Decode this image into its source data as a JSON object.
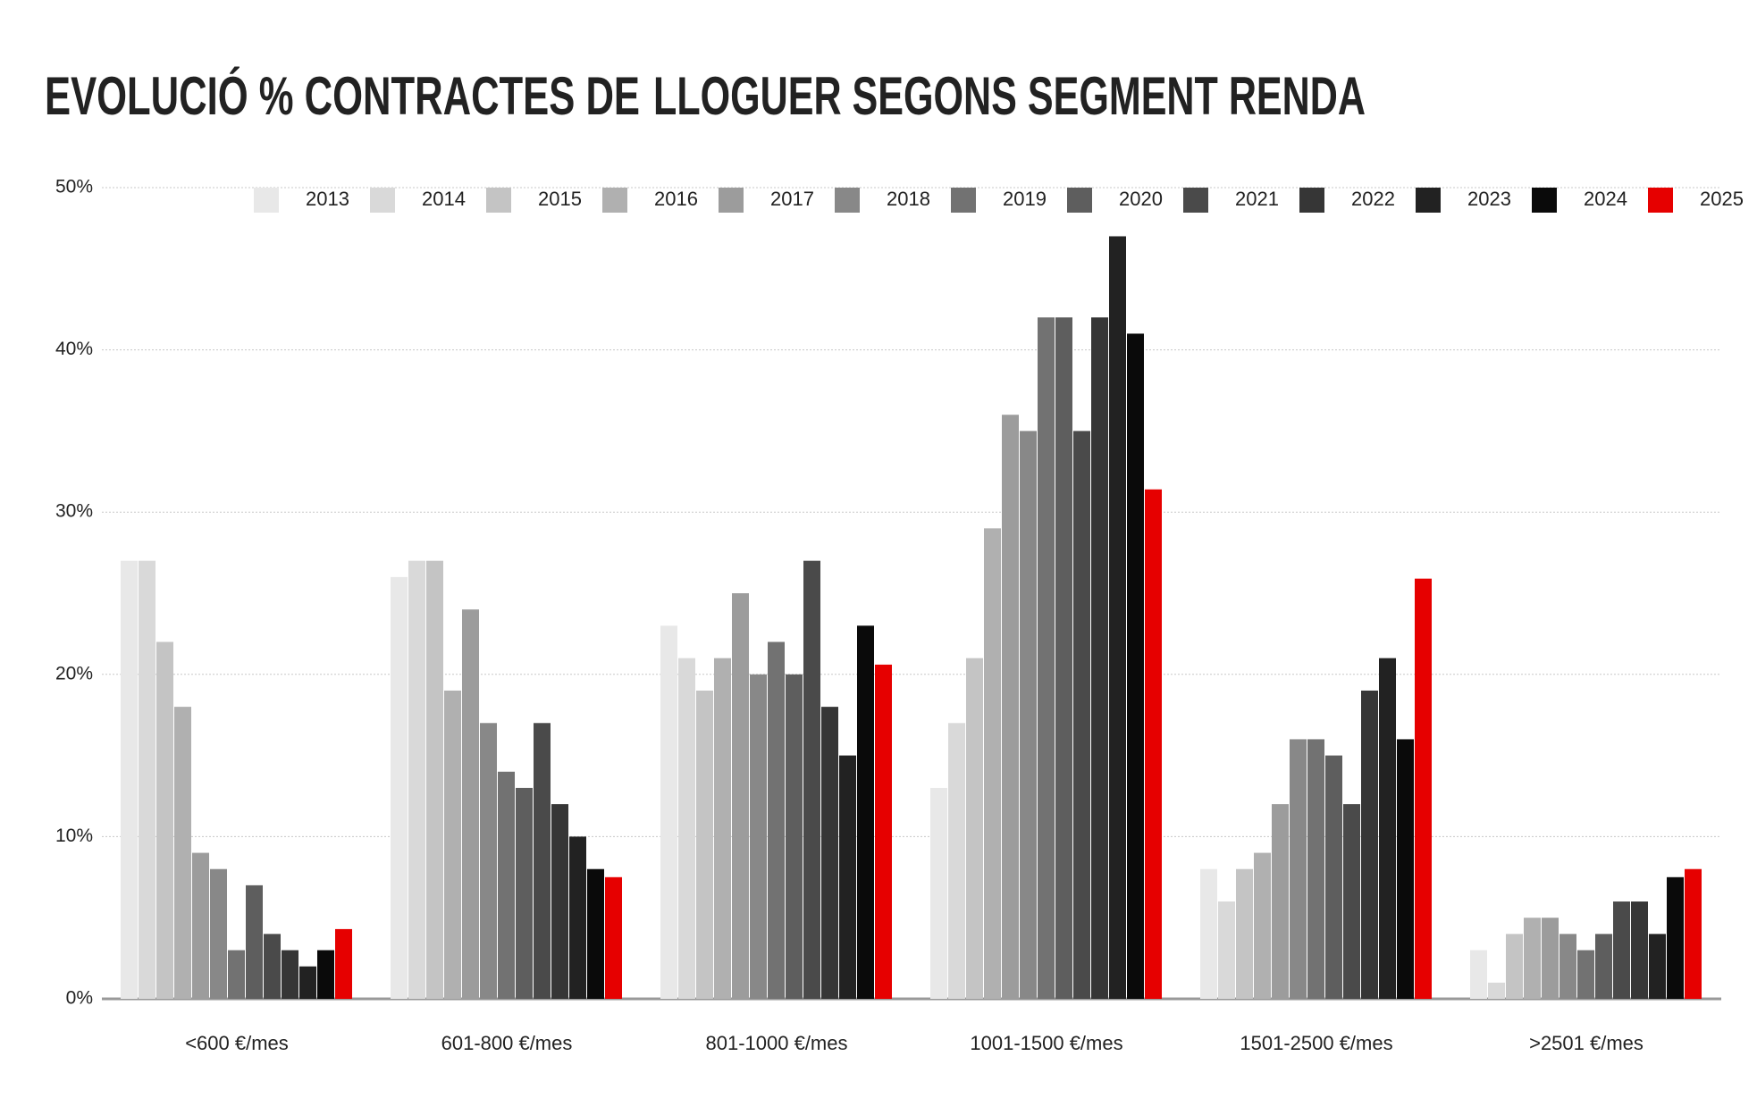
{
  "chart_data": {
    "type": "bar",
    "title": [
      "EVOLUCIÓ % CONTRACTES DE",
      "LLOGUER SEGONS SEGMENT RENDA"
    ],
    "title_colors": [
      "#000000",
      "#e3131b"
    ],
    "categories": [
      "<600 €/mes",
      "601-800 €/mes",
      "801-1000 €/mes",
      "1001-1500 €/mes",
      "1501-2500 €/mes",
      ">2501 €/mes"
    ],
    "series": [
      {
        "name": "2013",
        "color": "#e8e8e8",
        "values": [
          27,
          26,
          23,
          13,
          8,
          3
        ]
      },
      {
        "name": "2014",
        "color": "#d9d9d9",
        "values": [
          27,
          27,
          21,
          17,
          6,
          1
        ]
      },
      {
        "name": "2015",
        "color": "#c4c4c4",
        "values": [
          22,
          27,
          19,
          21,
          8,
          4
        ]
      },
      {
        "name": "2016",
        "color": "#b0b0b0",
        "values": [
          18,
          19,
          21,
          29,
          9,
          5
        ]
      },
      {
        "name": "2017",
        "color": "#9c9c9c",
        "values": [
          9,
          24,
          25,
          36,
          12,
          5
        ]
      },
      {
        "name": "2018",
        "color": "#888888",
        "values": [
          8,
          17,
          20,
          35,
          16,
          4
        ]
      },
      {
        "name": "2019",
        "color": "#727272",
        "values": [
          3,
          14,
          22,
          42,
          16,
          3
        ]
      },
      {
        "name": "2020",
        "color": "#5e5e5e",
        "values": [
          7,
          13,
          20,
          42,
          15,
          4
        ]
      },
      {
        "name": "2021",
        "color": "#4a4a4a",
        "values": [
          4,
          17,
          27,
          35,
          12,
          6
        ]
      },
      {
        "name": "2022",
        "color": "#363636",
        "values": [
          3,
          12,
          18,
          42,
          19,
          6
        ]
      },
      {
        "name": "2023",
        "color": "#222222",
        "values": [
          2,
          10,
          15,
          47,
          21,
          4
        ]
      },
      {
        "name": "2024",
        "color": "#0a0a0a",
        "values": [
          3,
          8,
          23,
          41,
          16,
          7.5
        ]
      },
      {
        "name": "2025",
        "color": "#e60000",
        "values": [
          4.3,
          7.5,
          20.6,
          31.4,
          25.9,
          8
        ]
      }
    ],
    "ylim": [
      0,
      50
    ],
    "yticks": [
      {
        "value": 0,
        "label": "0%"
      },
      {
        "value": 10,
        "label": "10%"
      },
      {
        "value": 20,
        "label": "20%"
      },
      {
        "value": 30,
        "label": "30%"
      },
      {
        "value": 40,
        "label": "40%"
      },
      {
        "value": 50,
        "label": "50%"
      }
    ],
    "grid": true,
    "legend": "top"
  }
}
